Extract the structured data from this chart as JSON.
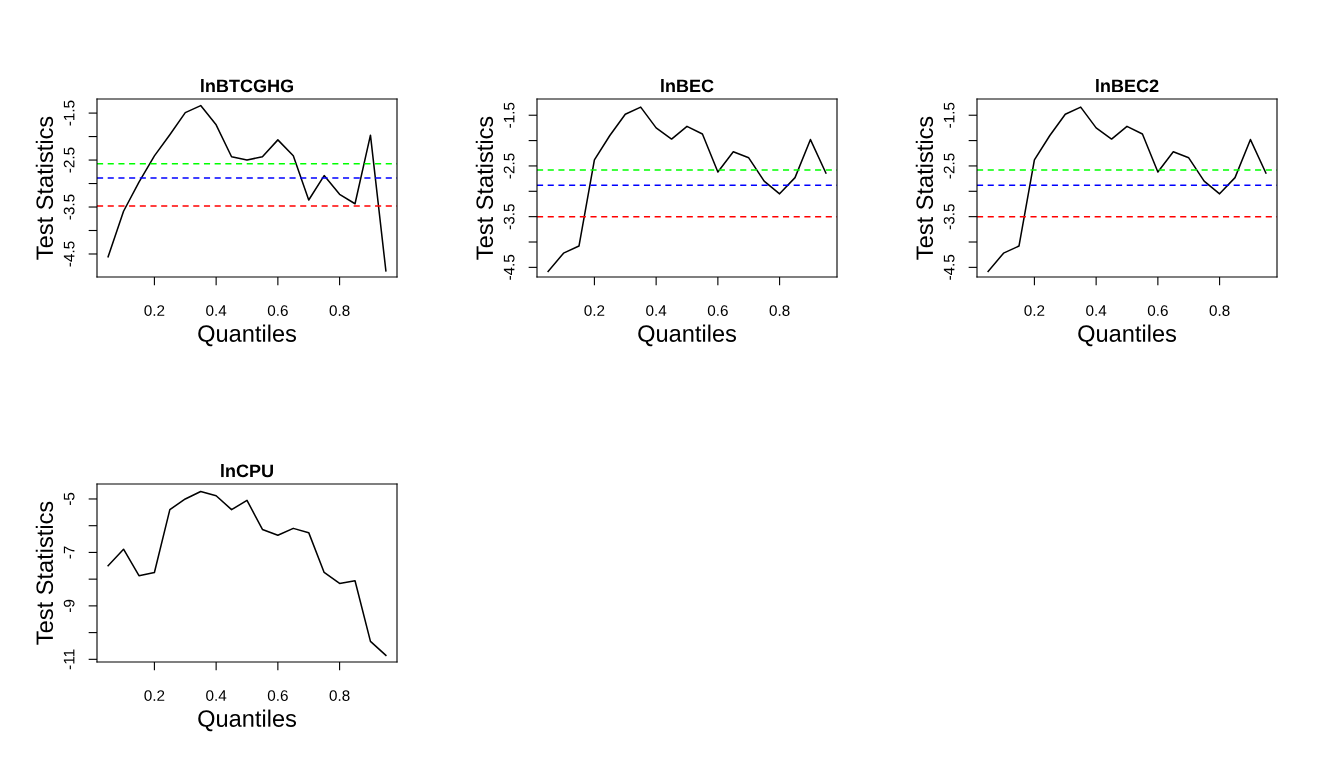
{
  "chart_data": [
    {
      "type": "line",
      "title": "lnBTCGHG",
      "xlabel": "Quantiles",
      "ylabel": "Test Statistics",
      "line_style": "solid",
      "x": [
        0.05,
        0.1,
        0.15,
        0.2,
        0.25,
        0.3,
        0.35,
        0.4,
        0.45,
        0.5,
        0.55,
        0.6,
        0.65,
        0.7,
        0.75,
        0.8,
        0.85,
        0.9,
        0.95
      ],
      "series": [
        {
          "color": "#000000",
          "values": [
            -4.56,
            -3.59,
            -2.97,
            -2.41,
            -1.96,
            -1.49,
            -1.34,
            -1.75,
            -2.43,
            -2.5,
            -2.43,
            -2.07,
            -2.41,
            -3.35,
            -2.83,
            -3.23,
            -3.43,
            -1.97,
            -4.86
          ]
        }
      ],
      "xlim": [
        0.014,
        0.986
      ],
      "ylim": [
        -4.99,
        -1.2
      ],
      "xticks": [
        0.2,
        0.4,
        0.6,
        0.8
      ],
      "yticks": [
        -1.5,
        {
          "value": -2,
          "label": null
        },
        -2.5,
        {
          "value": -3,
          "label": null
        },
        -3.5,
        {
          "value": -4,
          "label": null
        },
        -4.5
      ],
      "ref_lines": [
        {
          "axis": "y",
          "value": -2.58,
          "color": "#00ff00",
          "line_style": "dashed"
        },
        {
          "axis": "y",
          "value": -2.88,
          "color": "#0000ff",
          "line_style": "dashed"
        },
        {
          "axis": "y",
          "value": -3.48,
          "color": "#ff0000",
          "line_style": "dashed"
        }
      ]
    },
    {
      "type": "line",
      "title": "lnBEC",
      "xlabel": "Quantiles",
      "ylabel": "Test Statistics",
      "line_style": "solid",
      "x": [
        0.05,
        0.1,
        0.15,
        0.2,
        0.25,
        0.3,
        0.35,
        0.4,
        0.45,
        0.5,
        0.55,
        0.6,
        0.65,
        0.7,
        0.75,
        0.8,
        0.85,
        0.9,
        0.95
      ],
      "series": [
        {
          "color": "#000000",
          "values": [
            -4.58,
            -4.22,
            -4.08,
            -2.38,
            -1.9,
            -1.48,
            -1.34,
            -1.75,
            -1.97,
            -1.72,
            -1.87,
            -2.62,
            -2.22,
            -2.34,
            -2.8,
            -3.05,
            -2.73,
            -1.98,
            -2.64
          ]
        }
      ],
      "xlim": [
        0.014,
        0.986
      ],
      "ylim": [
        -4.69,
        -1.18
      ],
      "xticks": [
        0.2,
        0.4,
        0.6,
        0.8
      ],
      "yticks": [
        -1.5,
        {
          "value": -2,
          "label": null
        },
        -2.5,
        {
          "value": -3,
          "label": null
        },
        -3.5,
        {
          "value": -4,
          "label": null
        },
        -4.5
      ],
      "ref_lines": [
        {
          "axis": "y",
          "value": -2.58,
          "color": "#00ff00",
          "line_style": "dashed"
        },
        {
          "axis": "y",
          "value": -2.88,
          "color": "#0000ff",
          "line_style": "dashed"
        },
        {
          "axis": "y",
          "value": -3.5,
          "color": "#ff0000",
          "line_style": "dashed"
        }
      ]
    },
    {
      "type": "line",
      "title": "lnBEC2",
      "xlabel": "Quantiles",
      "ylabel": "Test Statistics",
      "line_style": "solid",
      "x": [
        0.05,
        0.1,
        0.15,
        0.2,
        0.25,
        0.3,
        0.35,
        0.4,
        0.45,
        0.5,
        0.55,
        0.6,
        0.65,
        0.7,
        0.75,
        0.8,
        0.85,
        0.9,
        0.95
      ],
      "series": [
        {
          "color": "#000000",
          "values": [
            -4.58,
            -4.22,
            -4.08,
            -2.38,
            -1.9,
            -1.48,
            -1.34,
            -1.75,
            -1.97,
            -1.72,
            -1.87,
            -2.62,
            -2.22,
            -2.34,
            -2.8,
            -3.05,
            -2.73,
            -1.98,
            -2.64
          ]
        }
      ],
      "xlim": [
        0.014,
        0.986
      ],
      "ylim": [
        -4.69,
        -1.18
      ],
      "xticks": [
        0.2,
        0.4,
        0.6,
        0.8
      ],
      "yticks": [
        -1.5,
        {
          "value": -2,
          "label": null
        },
        -2.5,
        {
          "value": -3,
          "label": null
        },
        -3.5,
        {
          "value": -4,
          "label": null
        },
        -4.5
      ],
      "ref_lines": [
        {
          "axis": "y",
          "value": -2.58,
          "color": "#00ff00",
          "line_style": "dashed"
        },
        {
          "axis": "y",
          "value": -2.88,
          "color": "#0000ff",
          "line_style": "dashed"
        },
        {
          "axis": "y",
          "value": -3.5,
          "color": "#ff0000",
          "line_style": "dashed"
        }
      ]
    },
    {
      "type": "line",
      "title": "lnCPU",
      "xlabel": "Quantiles",
      "ylabel": "Test Statistics",
      "line_style": "solid",
      "x": [
        0.05,
        0.1,
        0.15,
        0.2,
        0.25,
        0.3,
        0.35,
        0.4,
        0.45,
        0.5,
        0.55,
        0.6,
        0.65,
        0.7,
        0.75,
        0.8,
        0.85,
        0.9,
        0.95
      ],
      "series": [
        {
          "color": "#000000",
          "values": [
            -7.5,
            -6.88,
            -7.87,
            -7.75,
            -5.4,
            -5.0,
            -4.72,
            -4.88,
            -5.4,
            -5.05,
            -6.14,
            -6.36,
            -6.1,
            -6.26,
            -7.75,
            -8.16,
            -8.06,
            -10.33,
            -10.85
          ]
        }
      ],
      "xlim": [
        0.014,
        0.986
      ],
      "ylim": [
        -11.1,
        -4.44
      ],
      "xticks": [
        0.2,
        0.4,
        0.6,
        0.8
      ],
      "yticks": [
        -5,
        {
          "value": -6,
          "label": null
        },
        -7,
        {
          "value": -8,
          "label": null
        },
        -9,
        {
          "value": -10,
          "label": null
        },
        -11
      ]
    }
  ]
}
